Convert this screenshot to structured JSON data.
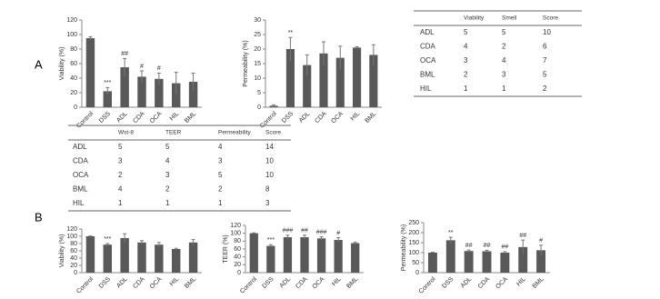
{
  "panel_labels": [
    "A",
    "B"
  ],
  "chart_data": [
    {
      "type": "bar",
      "ylabel": "Viability (%)",
      "color": "#595959",
      "categories": [
        "Control",
        "DSS",
        "ADL",
        "CDA",
        "OCA",
        "HIL",
        "BML"
      ],
      "values": [
        95,
        22,
        55,
        42,
        39,
        33,
        35
      ],
      "errors": [
        2,
        5,
        12,
        8,
        8,
        15,
        12
      ],
      "annotations": [
        null,
        "***",
        "##",
        "#",
        "#",
        null,
        null
      ],
      "ylim": [
        0,
        120
      ],
      "yticks": [
        0,
        20,
        40,
        60,
        80,
        100,
        120
      ]
    },
    {
      "type": "bar",
      "ylabel": "Permeability (%)",
      "color": "#595959",
      "categories": [
        "Control",
        "DSS",
        "ADL",
        "CDA",
        "OCA",
        "HIL",
        "BML"
      ],
      "values": [
        0.5,
        20,
        14.5,
        18.5,
        17,
        20.5,
        18
      ],
      "errors": [
        0.3,
        4,
        3.5,
        4,
        4,
        0.3,
        3.5
      ],
      "annotations": [
        null,
        "**",
        null,
        null,
        null,
        null,
        null
      ],
      "ylim": [
        0,
        30
      ],
      "yticks": [
        0,
        5,
        10,
        15,
        20,
        25,
        30
      ]
    },
    {
      "type": "bar",
      "ylabel": "Viability (%)",
      "color": "#595959",
      "categories": [
        "Control",
        "DSS",
        "ADL",
        "CDA",
        "OCA",
        "HIL",
        "BML"
      ],
      "values": [
        100,
        77,
        95,
        83,
        77,
        65,
        83
      ],
      "errors": [
        1,
        3,
        12,
        5,
        6,
        2,
        8
      ],
      "annotations": [
        null,
        "***",
        null,
        null,
        null,
        null,
        null
      ],
      "ylim": [
        0,
        120
      ],
      "yticks": [
        0,
        20,
        40,
        60,
        80,
        100,
        120
      ]
    },
    {
      "type": "bar",
      "ylabel": "TEER (%)",
      "color": "#595959",
      "categories": [
        "Control",
        "DSS",
        "ADL",
        "CDA",
        "OCA",
        "HIL",
        "BML"
      ],
      "values": [
        100,
        68,
        90,
        90,
        87,
        83,
        75
      ],
      "errors": [
        1,
        3,
        5,
        5,
        4,
        6,
        2
      ],
      "annotations": [
        null,
        "***",
        "###",
        "##",
        "###",
        "#",
        null
      ],
      "ylim": [
        0,
        120
      ],
      "yticks": [
        0,
        20,
        40,
        60,
        80,
        100,
        120
      ]
    },
    {
      "type": "bar",
      "ylabel": "Permeability (%)",
      "color": "#595959",
      "categories": [
        "Control",
        "DSS",
        "ADL",
        "CDA",
        "OCA",
        "HIL",
        "BML"
      ],
      "values": [
        100,
        162,
        108,
        107,
        100,
        128,
        112
      ],
      "errors": [
        2,
        15,
        5,
        5,
        5,
        35,
        25
      ],
      "annotations": [
        null,
        "**",
        "##",
        "##",
        "##",
        "##",
        "#"
      ],
      "ylim": [
        0,
        250
      ],
      "yticks": [
        0,
        50,
        100,
        150,
        200,
        250
      ]
    }
  ],
  "tables": [
    {
      "header": [
        "Viability",
        "Smell",
        "Score"
      ],
      "rows": [
        [
          "ADL",
          5,
          5,
          10
        ],
        [
          "CDA",
          4,
          2,
          6
        ],
        [
          "OCA",
          3,
          4,
          7
        ],
        [
          "BML",
          2,
          3,
          5
        ],
        [
          "HIL",
          1,
          1,
          2
        ]
      ]
    },
    {
      "header": [
        "Wst-8",
        "TEER",
        "Permeability",
        "Score"
      ],
      "rows": [
        [
          "ADL",
          5,
          5,
          4,
          14
        ],
        [
          "CDA",
          3,
          4,
          3,
          10
        ],
        [
          "OCA",
          2,
          3,
          5,
          10
        ],
        [
          "BML",
          4,
          2,
          2,
          8
        ],
        [
          "HIL",
          1,
          1,
          1,
          3
        ]
      ]
    }
  ]
}
